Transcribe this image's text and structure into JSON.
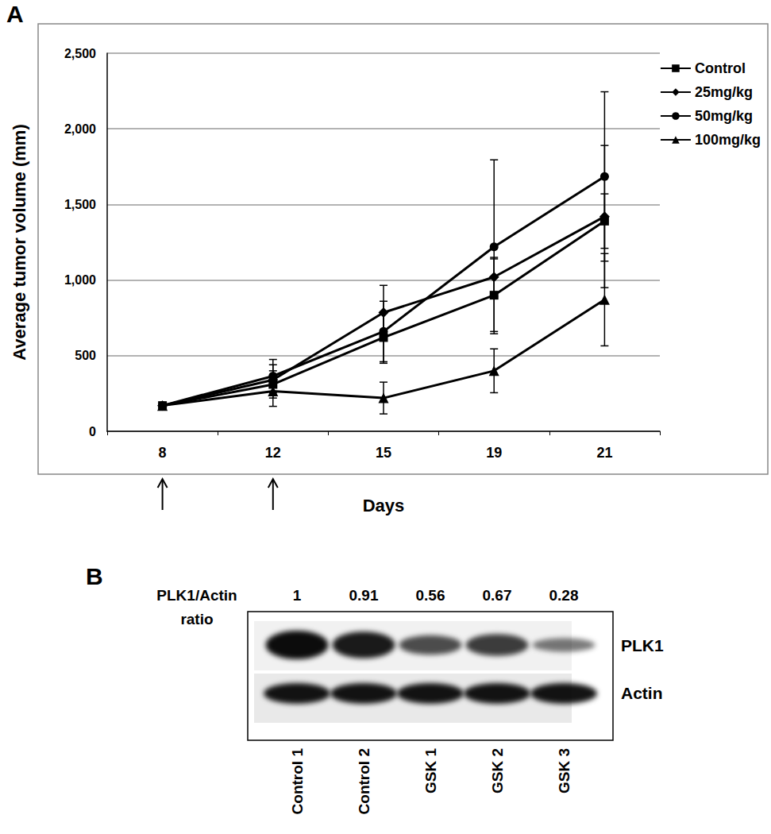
{
  "panel_a": {
    "label": "A"
  },
  "chart_data": {
    "type": "line",
    "categories": [
      "8",
      "12",
      "15",
      "19",
      "21"
    ],
    "x_label": "Days",
    "y_label": "Average tumor volume (mm)",
    "ylim": [
      0,
      2500
    ],
    "yticks": [
      0,
      500,
      1000,
      1500,
      2000,
      2500
    ],
    "grid": true,
    "legend": "right",
    "arrows": [
      "8",
      "12"
    ],
    "series": [
      {
        "name": "Control",
        "color": "#000000",
        "marker": "square",
        "line_style": "solid",
        "values": [
          170,
          310,
          620,
          900,
          1390
        ],
        "errors": [
          null,
          90,
          170,
          240,
          180
        ]
      },
      {
        "name": "25mg/kg",
        "color": "#000000",
        "marker": "diamond",
        "line_style": "solid",
        "values": [
          170,
          340,
          785,
          1020,
          1420
        ],
        "errors": [
          null,
          100,
          180,
          130,
          470
        ]
      },
      {
        "name": "50mg/kg",
        "color": "#000000",
        "marker": "circle",
        "line_style": "solid",
        "values": [
          170,
          365,
          660,
          1220,
          1685
        ],
        "errors": [
          null,
          110,
          200,
          575,
          560
        ]
      },
      {
        "name": "100mg/kg",
        "color": "#000000",
        "marker": "triangle",
        "line_style": "solid",
        "values": [
          170,
          265,
          220,
          400,
          870
        ],
        "errors": [
          null,
          100,
          105,
          145,
          305
        ]
      }
    ]
  },
  "panel_b": {
    "label": "B",
    "ratio_label": [
      "PLK1/Actin",
      "ratio"
    ],
    "ratios": [
      1,
      0.91,
      0.56,
      0.67,
      0.28
    ],
    "lanes": [
      "Control 1",
      "Control 2",
      "GSK 1",
      "GSK 2",
      "GSK 3"
    ],
    "bands": [
      "PLK1",
      "Actin"
    ]
  }
}
